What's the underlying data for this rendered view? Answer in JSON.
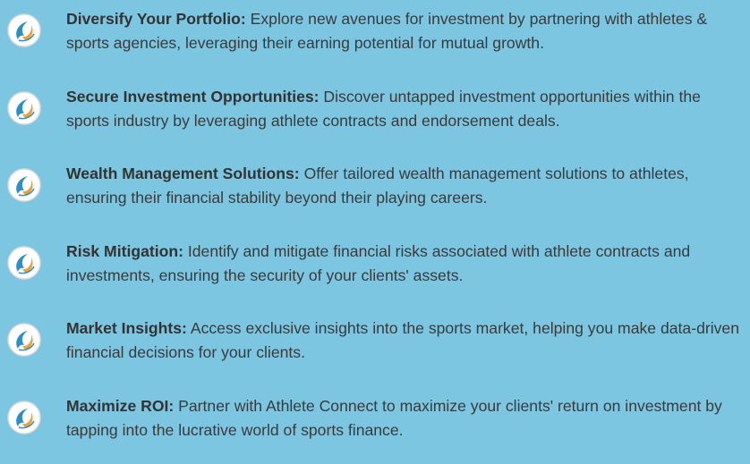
{
  "items": [
    {
      "title": "Diversify Your Portfolio:",
      "text": "Explore new avenues for investment by partnering with athletes & sports agencies, leveraging their earning potential for mutual growth."
    },
    {
      "title": "Secure Investment Opportunities:",
      "text": "Discover untapped investment opportunities within the sports industry by leveraging athlete contracts and endorsement deals."
    },
    {
      "title": "Wealth Management Solutions:",
      "text": "Offer tailored wealth management solutions to athletes, ensuring their financial stability beyond their playing careers."
    },
    {
      "title": "Risk Mitigation:",
      "text": "Identify and mitigate financial risks associated with athlete contracts and investments, ensuring the security of your clients' assets."
    },
    {
      "title": "Market Insights:",
      "text": "Access exclusive insights into the sports market, helping you make data-driven financial decisions for your clients."
    },
    {
      "title": "Maximize ROI:",
      "text": "Partner with Athlete Connect to maximize your clients' return on investment by tapping into the lucrative world of sports finance."
    }
  ]
}
